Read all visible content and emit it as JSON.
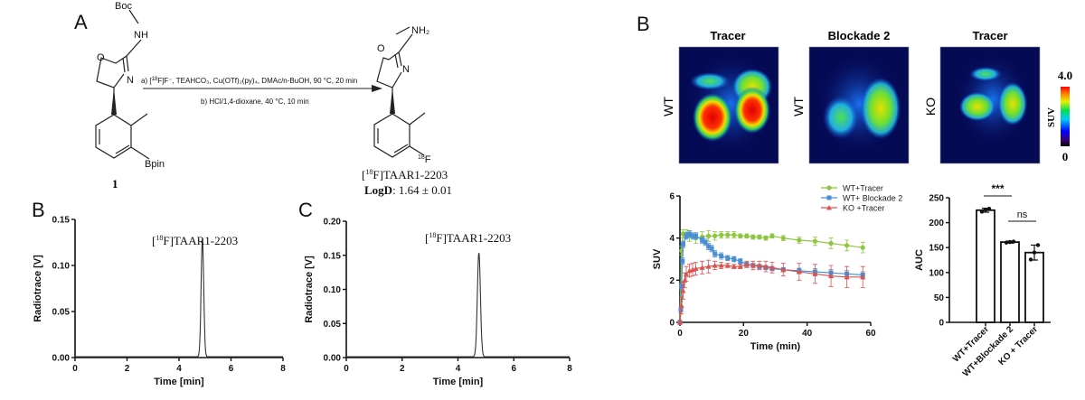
{
  "panel_labels": {
    "A": "A",
    "B_left": "B",
    "C": "C",
    "B_right": "B"
  },
  "scheme": {
    "reactant_labels": {
      "boc": "Boc",
      "nh": "NH",
      "o": "O",
      "n": "N",
      "bpin": "Bpin",
      "compound_number": "1"
    },
    "conditions_a": {
      "prefix": "a) [",
      "sup": "18",
      "rest": "F]F⁻, TEAHCO₃, Cu(OTf)₂(py)₄, DMAc/n-BuOH, 90 °C, 20 min"
    },
    "conditions_b": "b) HCl/1,4-dioxane, 40 °C, 10 min",
    "product_labels": {
      "nh2": "NH₂",
      "o": "O",
      "n": "N",
      "f_sup": "18",
      "f": "F"
    },
    "product_name": {
      "prefix": "[",
      "sup": "18",
      "rest": "F]TAAR1-2203"
    },
    "logd": {
      "label": "LogD",
      "value": ": 1.64 ± 0.01"
    }
  },
  "pet": {
    "columns": [
      "Tracer",
      "Blockade 2",
      "Tracer"
    ],
    "rows": [
      "WT",
      "WT",
      "KO"
    ],
    "colorbar": {
      "label": "SUV",
      "max": "4.0",
      "min": "0"
    }
  },
  "chart_data": [
    {
      "id": "radio-B",
      "type": "line",
      "title": "",
      "annotation": {
        "prefix": "[",
        "sup": "18",
        "rest": "F]TAAR1-2203"
      },
      "xlabel": "Time [min]",
      "ylabel": "Radiotrace [V]",
      "xlim": [
        0,
        8
      ],
      "ylim": [
        0,
        0.15
      ],
      "xticks": [
        "0",
        "2",
        "4",
        "6",
        "8"
      ],
      "yticks": [
        "0.00",
        "0.05",
        "0.10",
        "0.15"
      ],
      "peak": {
        "time": 4.9,
        "height": 0.128,
        "width_sigma": 0.05
      }
    },
    {
      "id": "radio-C",
      "type": "line",
      "title": "",
      "annotation": {
        "prefix": "[",
        "sup": "18",
        "rest": "F]TAAR1-2203"
      },
      "xlabel": "Time [min]",
      "ylabel": "Radiotrace [V]",
      "xlim": [
        0,
        8
      ],
      "ylim": [
        0,
        0.2
      ],
      "xticks": [
        "0",
        "2",
        "4",
        "6",
        "8"
      ],
      "yticks": [
        "0.00",
        "0.05",
        "0.10",
        "0.15",
        "0.20"
      ],
      "peak": {
        "time": 4.75,
        "height": 0.152,
        "width_sigma": 0.055
      }
    },
    {
      "id": "suv",
      "type": "line",
      "xlabel": "Time (min)",
      "ylabel": "SUV",
      "xlim": [
        0,
        60
      ],
      "ylim": [
        0,
        6
      ],
      "xticks": [
        "0",
        "20",
        "40",
        "60"
      ],
      "yticks": [
        "0",
        "2",
        "4",
        "6"
      ],
      "legend": "top-right",
      "series": [
        {
          "name": "WT+Tracer",
          "color": "#8dc63f",
          "marker": "circle",
          "x": [
            0,
            0.5,
            1,
            2,
            3,
            5,
            7,
            9,
            11,
            13,
            15,
            17,
            19,
            21,
            23,
            25,
            27,
            29,
            32.5,
            37.5,
            42.5,
            47.5,
            52.5,
            57.5
          ],
          "y": [
            0,
            3.4,
            4.2,
            4.2,
            4.1,
            4.0,
            4.05,
            4.1,
            4.1,
            4.15,
            4.15,
            4.15,
            4.1,
            4.1,
            4.05,
            4.05,
            4.0,
            4.1,
            4.0,
            3.9,
            3.85,
            3.75,
            3.65,
            3.55
          ],
          "err": [
            0.05,
            0.2,
            0.2,
            0.2,
            0.25,
            0.25,
            0.25,
            0.25,
            0.2,
            0.15,
            0.15,
            0.15,
            0.1,
            0.1,
            0.1,
            0.1,
            0.1,
            0.1,
            0.12,
            0.15,
            0.2,
            0.25,
            0.25,
            0.25
          ]
        },
        {
          "name": "WT+ Blockade 2",
          "color": "#4a8fd6",
          "marker": "square",
          "x": [
            0,
            0.3,
            0.5,
            0.8,
            1,
            2,
            3,
            4,
            5,
            7,
            8,
            9,
            10,
            11,
            13,
            15,
            17,
            19,
            21,
            23,
            25,
            27,
            29,
            32.5,
            37.5,
            42.5,
            47.5,
            52.5,
            57.5
          ],
          "y": [
            0,
            0.6,
            1.7,
            2.9,
            3.7,
            4.1,
            4.2,
            4.1,
            4.1,
            3.9,
            3.8,
            3.6,
            3.5,
            3.25,
            3.15,
            3.05,
            3.0,
            2.9,
            2.75,
            2.7,
            2.65,
            2.6,
            2.55,
            2.5,
            2.45,
            2.4,
            2.35,
            2.3,
            2.25
          ],
          "err": [
            0.05,
            0.1,
            0.15,
            0.15,
            0.15,
            0.15,
            0.15,
            0.15,
            0.15,
            0.15,
            0.15,
            0.15,
            0.15,
            0.15,
            0.15,
            0.12,
            0.12,
            0.12,
            0.1,
            0.1,
            0.1,
            0.1,
            0.1,
            0.1,
            0.12,
            0.15,
            0.15,
            0.15,
            0.15
          ]
        },
        {
          "name": "KO +Tracer",
          "color": "#d9534f",
          "marker": "triangle",
          "x": [
            0,
            0.5,
            1,
            1.5,
            2,
            3,
            4,
            5,
            7,
            9,
            11,
            13,
            15,
            17,
            19,
            21,
            23,
            25,
            27,
            29,
            32.5,
            37.5,
            42.5,
            47.5,
            52.5,
            57.5
          ],
          "y": [
            0,
            0.8,
            1.5,
            2.0,
            2.3,
            2.45,
            2.5,
            2.55,
            2.6,
            2.65,
            2.7,
            2.7,
            2.7,
            2.65,
            2.65,
            2.75,
            2.7,
            2.7,
            2.65,
            2.6,
            2.5,
            2.4,
            2.3,
            2.2,
            2.15,
            2.15
          ],
          "err": [
            0.1,
            0.4,
            0.4,
            0.35,
            0.35,
            0.3,
            0.3,
            0.3,
            0.3,
            0.3,
            0.2,
            0.15,
            0.1,
            0.1,
            0.1,
            0.15,
            0.2,
            0.2,
            0.25,
            0.25,
            0.3,
            0.4,
            0.45,
            0.5,
            0.5,
            0.5
          ]
        }
      ]
    },
    {
      "id": "auc",
      "type": "bar",
      "ylabel": "AUC",
      "ylim": [
        0,
        250
      ],
      "yticks": [
        "0",
        "50",
        "100",
        "150",
        "200",
        "250"
      ],
      "categories": [
        "WT+Tracer",
        "WT+Blockade 2",
        "KO + Tracer"
      ],
      "values": [
        225,
        161,
        140
      ],
      "errors": [
        4,
        2,
        15
      ],
      "points": [
        [
          222,
          226,
          228
        ],
        [
          160,
          161,
          162
        ],
        [
          126,
          140,
          155
        ]
      ],
      "significance": [
        {
          "pair": [
            0,
            1
          ],
          "label": "***"
        },
        {
          "pair": [
            1,
            2
          ],
          "label": "ns"
        }
      ]
    }
  ]
}
